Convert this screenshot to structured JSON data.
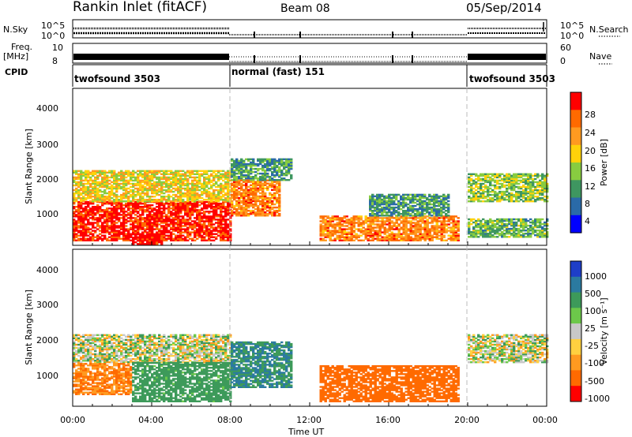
{
  "header": {
    "station": "Rankin Inlet (fitACF)",
    "beam": "Beam 08",
    "date": "05/Sep/2014"
  },
  "panels_top": {
    "nsky_label": "N.Sky",
    "nsky_ticks": [
      "10^5",
      "10^0"
    ],
    "nsearch_label": "N.Search",
    "nsearch_ticks": [
      "10^5",
      "10^0"
    ],
    "freq_label_line1": "Freq.",
    "freq_label_line2": "[MHz]",
    "freq_ticks": [
      "10",
      "8"
    ],
    "nave_label": "Nave",
    "nave_ticks": [
      "60",
      "0"
    ],
    "cpid_label": "CPID",
    "cpid_segments": [
      {
        "name": "twofsound",
        "id": "3503",
        "start_hour": 0,
        "end_hour": 8
      },
      {
        "name": "normal (fast)",
        "id": "151",
        "start_hour": 8,
        "end_hour": 20
      },
      {
        "name": "twofsound",
        "id": "3503",
        "start_hour": 20,
        "end_hour": 24
      }
    ]
  },
  "axes": {
    "ylabel": "Slant Range [km]",
    "xlabel": "Time UT",
    "y_ticks": [
      "4000",
      "3000",
      "2000",
      "1000"
    ],
    "x_ticks": [
      "00:00",
      "04:00",
      "08:00",
      "12:00",
      "16:00",
      "20:00",
      "00:00"
    ]
  },
  "power_scale": {
    "label": "Power [dB]",
    "ticks": [
      "28",
      "24",
      "20",
      "16",
      "12",
      "8",
      "4"
    ],
    "colors": [
      "#ff0000",
      "#ff6a00",
      "#ff9a20",
      "#ffd20a",
      "#88cc40",
      "#3e9660",
      "#2a6aa8",
      "#0000ff"
    ]
  },
  "velocity_scale": {
    "label": "Velocity [m s⁻¹]",
    "ticks": [
      "1000",
      "500",
      "100",
      "25",
      "-25",
      "-100",
      "-500",
      "-1000"
    ],
    "colors": [
      "#1e3ec8",
      "#2b7aa0",
      "#3d9a5a",
      "#6cc84a",
      "#c8c8c8",
      "#ffd040",
      "#ff9a20",
      "#ff6a00",
      "#ff0000"
    ]
  },
  "chart_data": [
    {
      "type": "heatmap",
      "title": "Power",
      "xlabel": "Time UT",
      "ylabel": "Slant Range [km]",
      "xlim_hours": [
        0,
        24
      ],
      "ylim_km": [
        180,
        4600
      ],
      "colorbar_label": "Power [dB]",
      "colorbar_range_db": [
        0,
        32
      ],
      "regions": [
        {
          "t_start": 0.0,
          "t_end": 8.0,
          "r_min": 300,
          "r_max": 1400,
          "value_db": 28
        },
        {
          "t_start": 0.0,
          "t_end": 8.0,
          "r_min": 1400,
          "r_max": 2300,
          "value_db": 16
        },
        {
          "t_start": 3.0,
          "t_end": 4.5,
          "r_min": 200,
          "r_max": 500,
          "value_db": 30
        },
        {
          "t_start": 8.0,
          "t_end": 10.5,
          "r_min": 1000,
          "r_max": 2000,
          "value_db": 22
        },
        {
          "t_start": 8.0,
          "t_end": 11.0,
          "r_min": 2000,
          "r_max": 2600,
          "value_db": 8
        },
        {
          "t_start": 12.5,
          "t_end": 19.5,
          "r_min": 300,
          "r_max": 1000,
          "value_db": 22
        },
        {
          "t_start": 15.0,
          "t_end": 19.0,
          "r_min": 1000,
          "r_max": 1600,
          "value_db": 8
        },
        {
          "t_start": 20.0,
          "t_end": 24.0,
          "r_min": 1400,
          "r_max": 2200,
          "value_db": 12
        },
        {
          "t_start": 20.0,
          "t_end": 24.0,
          "r_min": 400,
          "r_max": 900,
          "value_db": 10
        }
      ]
    },
    {
      "type": "heatmap",
      "title": "Velocity",
      "xlabel": "Time UT",
      "ylabel": "Slant Range [km]",
      "xlim_hours": [
        0,
        24
      ],
      "ylim_km": [
        180,
        4600
      ],
      "colorbar_label": "Velocity [m s⁻¹]",
      "colorbar_levels": [
        1000,
        500,
        100,
        25,
        -25,
        -100,
        -500,
        -1000
      ],
      "regions": [
        {
          "t_start": 0.0,
          "t_end": 8.0,
          "r_min": 1400,
          "r_max": 2200,
          "value_ms": 0
        },
        {
          "t_start": 0.0,
          "t_end": 3.0,
          "r_min": 500,
          "r_max": 1400,
          "value_ms": -300
        },
        {
          "t_start": 3.0,
          "t_end": 8.0,
          "r_min": 300,
          "r_max": 1400,
          "value_ms": 150
        },
        {
          "t_start": 8.0,
          "t_end": 11.0,
          "r_min": 700,
          "r_max": 2000,
          "value_ms": 300
        },
        {
          "t_start": 12.5,
          "t_end": 19.5,
          "r_min": 300,
          "r_max": 1300,
          "value_ms": -400
        },
        {
          "t_start": 20.0,
          "t_end": 24.0,
          "r_min": 1400,
          "r_max": 2200,
          "value_ms": 0
        }
      ]
    }
  ]
}
